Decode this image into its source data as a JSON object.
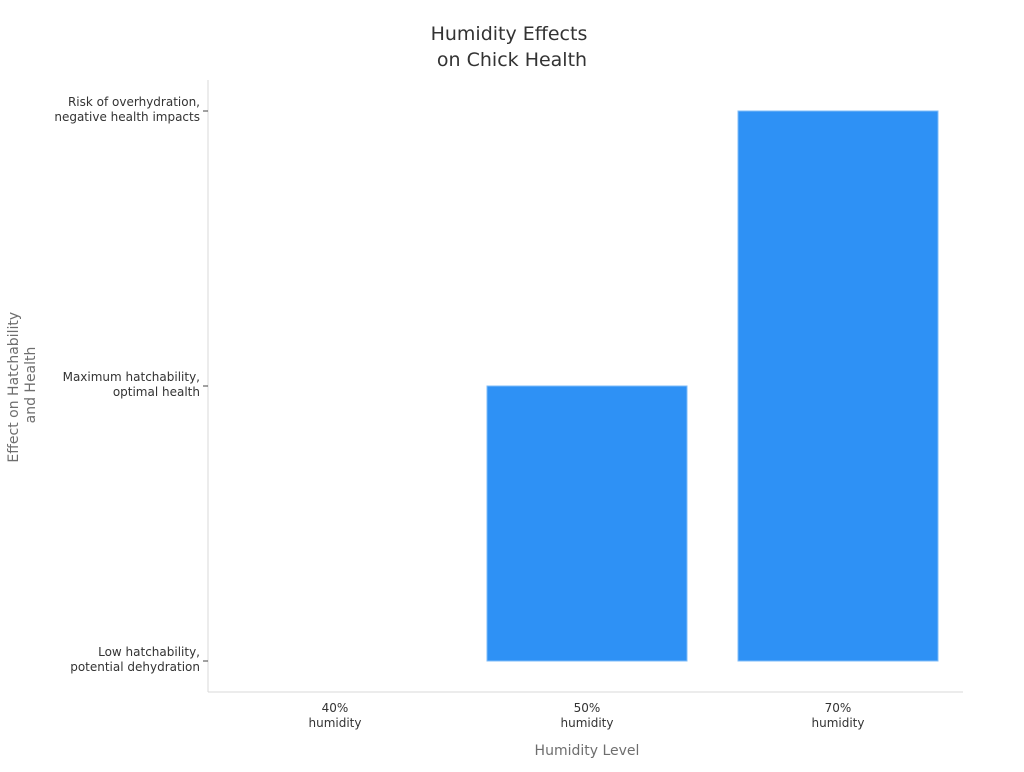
{
  "chart_data": {
    "type": "bar",
    "title_lines": [
      "Humidity Effects",
      "on Chick Health"
    ],
    "xlabel": "Humidity Level",
    "ylabel_lines": [
      "Effect on Hatchability",
      "and Health"
    ],
    "categories": [
      [
        "40%",
        "humidity"
      ],
      [
        "50%",
        "humidity"
      ],
      [
        "70%",
        "humidity"
      ]
    ],
    "y_categories": [
      [
        "Low hatchability,",
        "potential dehydration"
      ],
      [
        "Maximum hatchability,",
        "optimal health"
      ],
      [
        "Risk of overhydration,",
        "negative health impacts"
      ]
    ],
    "values": [
      0,
      1,
      2
    ],
    "colors": {
      "bar": "#2e91f5"
    },
    "grid": false,
    "legend": "none"
  }
}
